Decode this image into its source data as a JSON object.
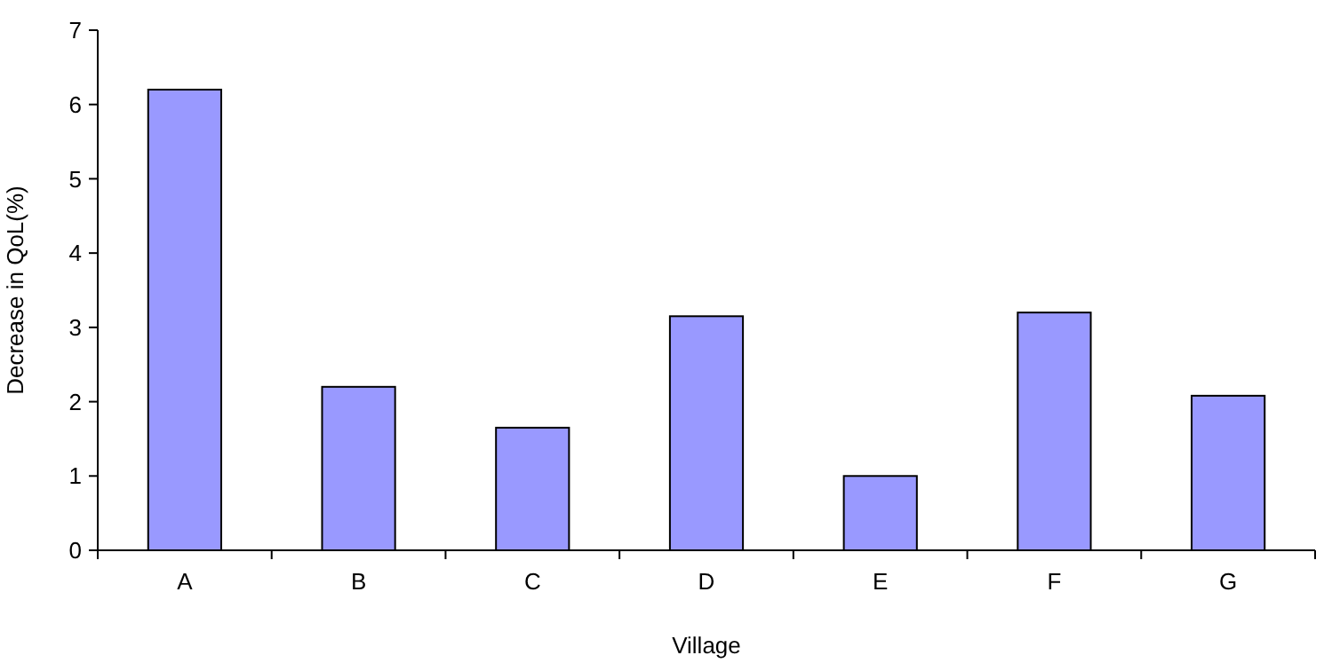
{
  "chart_data": {
    "type": "bar",
    "xlabel": "Village",
    "ylabel": "Decrease in QoL(%)",
    "categories": [
      "A",
      "B",
      "C",
      "D",
      "E",
      "F",
      "G"
    ],
    "values": [
      6.2,
      2.2,
      1.65,
      3.15,
      1.0,
      3.2,
      2.08
    ],
    "color": "#9999ff",
    "ylim": [
      0,
      7
    ],
    "yticks": [
      0,
      1,
      2,
      3,
      4,
      5,
      6,
      7
    ],
    "grid": false
  }
}
